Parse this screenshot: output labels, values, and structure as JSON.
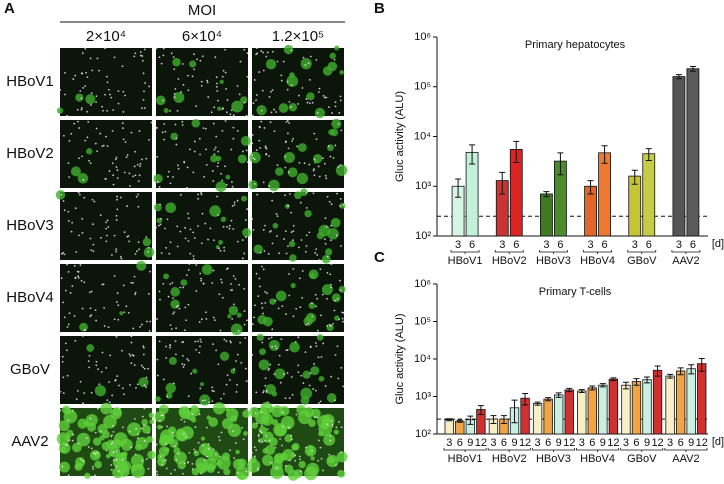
{
  "panels": [
    "A",
    "B",
    "C"
  ],
  "microscopy": {
    "header": "MOI",
    "columns": [
      "2×10⁴",
      "6×10⁴",
      "1.2×10⁵"
    ],
    "rows": [
      "HBoV1",
      "HBoV2",
      "HBoV3",
      "HBoV4",
      "GBoV",
      "AAV2"
    ]
  },
  "chart_data": [
    {
      "type": "bar",
      "title": "Primary hepatocytes",
      "y_label": "Gluc activity (ALU)",
      "x_unit": "[d]",
      "log_scale": true,
      "ylim": [
        100,
        1000000
      ],
      "yticks": [
        {
          "value": 100,
          "label": "10²"
        },
        {
          "value": 1000,
          "label": "10³"
        },
        {
          "value": 10000,
          "label": "10⁴"
        },
        {
          "value": 100000,
          "label": "10⁵"
        },
        {
          "value": 1000000,
          "label": "10⁶"
        }
      ],
      "threshold": 250,
      "groups": [
        {
          "name": "HBoV1",
          "days": [
            "3",
            "6"
          ],
          "values": [
            1000,
            4800
          ],
          "errors": [
            400,
            2000
          ],
          "colors": [
            "#d6f5e4",
            "#c2f0da"
          ]
        },
        {
          "name": "HBoV2",
          "days": [
            "3",
            "6"
          ],
          "values": [
            1300,
            5500
          ],
          "errors": [
            600,
            2500
          ],
          "colors": [
            "#c93434",
            "#dd2424"
          ]
        },
        {
          "name": "HBoV3",
          "days": [
            "3",
            "6"
          ],
          "values": [
            700,
            3200
          ],
          "errors": [
            80,
            1500
          ],
          "colors": [
            "#3d7a22",
            "#4b8b2c"
          ]
        },
        {
          "name": "HBoV4",
          "days": [
            "3",
            "6"
          ],
          "values": [
            1000,
            4700
          ],
          "errors": [
            300,
            1800
          ],
          "colors": [
            "#e2652a",
            "#ee7a32"
          ]
        },
        {
          "name": "GBoV",
          "days": [
            "3",
            "6"
          ],
          "values": [
            1600,
            4500
          ],
          "errors": [
            500,
            1200
          ],
          "colors": [
            "#c4c434",
            "#c6cc44"
          ]
        },
        {
          "name": "AAV2",
          "days": [
            "3",
            "6"
          ],
          "values": [
            160000,
            230000
          ],
          "errors": [
            15000,
            25000
          ],
          "colors": [
            "#555555",
            "#5a5a5a"
          ]
        }
      ]
    },
    {
      "type": "bar",
      "title": "Primary T-cells",
      "y_label": "Gluc activity (ALU)",
      "x_unit": "[d]",
      "log_scale": true,
      "ylim": [
        100,
        1000000
      ],
      "yticks": [
        {
          "value": 100,
          "label": "10²"
        },
        {
          "value": 1000,
          "label": "10³"
        },
        {
          "value": 10000,
          "label": "10⁴"
        },
        {
          "value": 100000,
          "label": "10⁵"
        },
        {
          "value": 1000000,
          "label": "10⁶"
        }
      ],
      "threshold": 250,
      "groups": [
        {
          "name": "HBoV1",
          "days": [
            "3",
            "6",
            "9",
            "12"
          ],
          "values": [
            240,
            220,
            240,
            450
          ],
          "errors": [
            15,
            15,
            60,
            120
          ],
          "colors": [
            "#f6f0c4",
            "#f0a444",
            "#c8f0e0",
            "#d03030"
          ]
        },
        {
          "name": "HBoV2",
          "days": [
            "3",
            "6",
            "9",
            "12"
          ],
          "values": [
            250,
            250,
            500,
            900
          ],
          "errors": [
            60,
            60,
            300,
            300
          ],
          "colors": [
            "#f6f0c4",
            "#f0a444",
            "#c8f0e0",
            "#d03030"
          ]
        },
        {
          "name": "HBoV3",
          "days": [
            "3",
            "6",
            "9",
            "12"
          ],
          "values": [
            650,
            850,
            1100,
            1500
          ],
          "errors": [
            60,
            80,
            150,
            150
          ],
          "colors": [
            "#f6f0c4",
            "#f0a444",
            "#c8f0e0",
            "#d03030"
          ]
        },
        {
          "name": "HBoV4",
          "days": [
            "3",
            "6",
            "9",
            "12"
          ],
          "values": [
            1400,
            1700,
            2000,
            2900
          ],
          "errors": [
            120,
            200,
            200,
            250
          ],
          "colors": [
            "#f6f0c4",
            "#f0a444",
            "#c8f0e0",
            "#d03030"
          ]
        },
        {
          "name": "GBoV",
          "days": [
            "3",
            "6",
            "9",
            "12"
          ],
          "values": [
            2000,
            2500,
            2800,
            5000
          ],
          "errors": [
            400,
            500,
            500,
            1500
          ],
          "colors": [
            "#f6f0c4",
            "#f0a444",
            "#c8f0e0",
            "#d03030"
          ]
        },
        {
          "name": "AAV2",
          "days": [
            "3",
            "6",
            "9",
            "12"
          ],
          "values": [
            3500,
            4800,
            5500,
            7500
          ],
          "errors": [
            400,
            1000,
            1500,
            2800
          ],
          "colors": [
            "#f6f0c4",
            "#f0a444",
            "#c8f0e0",
            "#d03030"
          ]
        }
      ]
    }
  ]
}
